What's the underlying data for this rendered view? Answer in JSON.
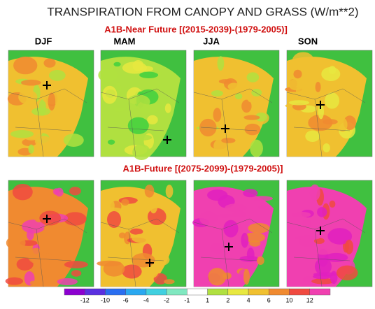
{
  "title": "TRANSPIRATION FROM CANOPY AND GRASS (W/m**2)",
  "scenarios": [
    "A1B-Near Future [(2015-2039)-(1979-2005)]",
    "A1B-Future [(2075-2099)-(1979-2005)]"
  ],
  "seasons": [
    "DJF",
    "MAM",
    "JJA",
    "SON"
  ],
  "colorbar": {
    "ticks": [
      -12,
      -10,
      -6,
      -4,
      -2,
      -1,
      1,
      2,
      4,
      6,
      10,
      12
    ],
    "colors": [
      "#8c00d0",
      "#5a30e0",
      "#2a6ef0",
      "#2aa8f0",
      "#40d0e0",
      "#80e8c0",
      "#ffffff",
      "#b0e040",
      "#e8e840",
      "#f0c030",
      "#f08a30",
      "#f04a40",
      "#f040b0"
    ]
  }
}
